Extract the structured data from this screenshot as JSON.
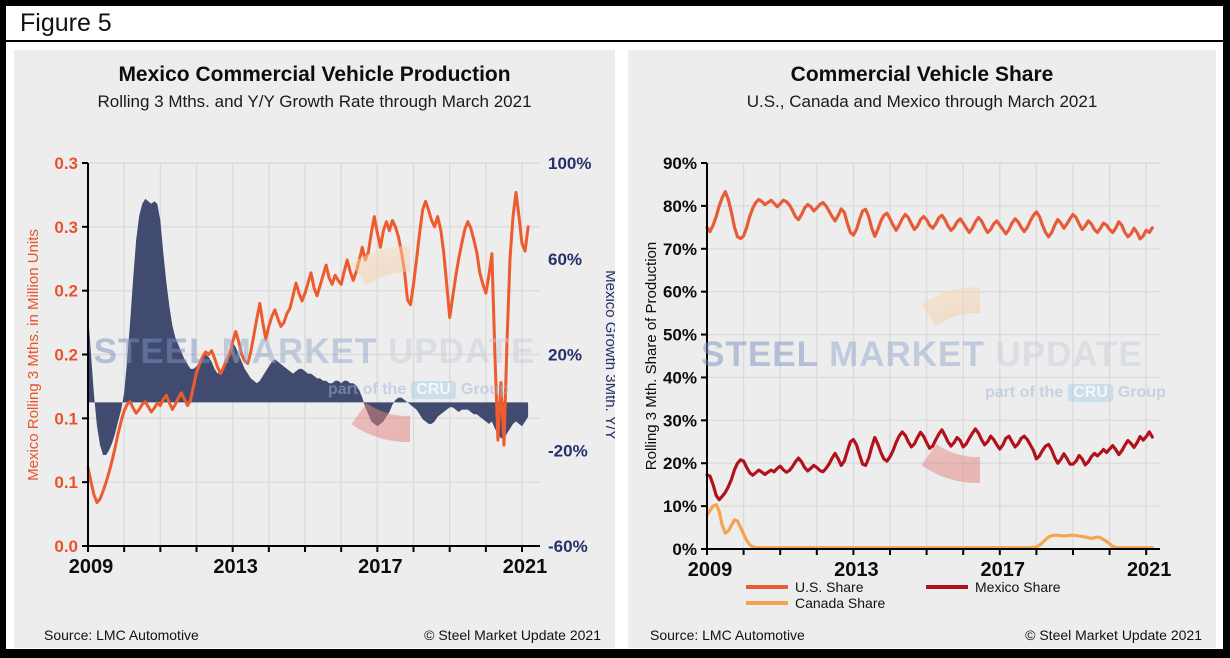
{
  "figure_label": "Figure 5",
  "watermark": {
    "steel": "STEEL",
    "market": "MARKET",
    "update": "UPDATE",
    "part_of": "part of the",
    "cru": "CRU",
    "group": "Group",
    "crescent_top_color": "#F7DAB2",
    "crescent_bottom_color": "#E4827E"
  },
  "theme": {
    "panel_bg": "#EDEDED",
    "grid": "#DBDBDB",
    "axis": "#000000",
    "orange_text": "#E8542A",
    "navy_text": "#26306B"
  },
  "left_panel": {
    "title": "Mexico Commercial Vehicle Production",
    "subtitle": "Rolling 3 Mths. and Y/Y Growth Rate through March 2021",
    "source": "Source: LMC Automotive",
    "copyright": "© Steel Market Update 2021"
  },
  "right_panel": {
    "title": "Commercial Vehicle Share",
    "subtitle": "U.S., Canada and Mexico through March 2021",
    "source": "Source: LMC Automotive",
    "copyright": "© Steel Market Update 2021"
  },
  "chart_data": [
    {
      "type": "line+area",
      "title": "Mexico Commercial Vehicle Production",
      "subtitle": "Rolling 3 Mths. and Y/Y Growth Rate through March 2021",
      "x_start": "2009-01",
      "x_end": "2021-03",
      "points_per_month": 1,
      "x_axis": {
        "tick_labels": [
          "2009",
          "2013",
          "2017",
          "2021"
        ],
        "minor_ticks_years": 13
      },
      "left_axis": {
        "label": "Mexico Rolling 3 Mths. in Million Units",
        "min": 0,
        "max": 0.3,
        "tick_labels": [
          "0.3",
          "0.3",
          "0.2",
          "0.2",
          "0.1",
          "0.1",
          "0.0"
        ],
        "color": "#E8542A"
      },
      "right_axis": {
        "label": "Mexico Growth 3Mth. Y/Y",
        "min": -60,
        "max": 100,
        "tick_labels": [
          "100%",
          "60%",
          "20%",
          "-20%",
          "-60%"
        ],
        "color": "#26306B"
      },
      "note": "monthly values estimated from plot",
      "series": [
        {
          "name": "Mexico Rolling 3 Mths. (Million Units)",
          "type": "line",
          "axis": "left",
          "color": "#EE5B2E",
          "values": [
            0.061,
            0.05,
            0.04,
            0.034,
            0.037,
            0.043,
            0.05,
            0.058,
            0.067,
            0.077,
            0.088,
            0.098,
            0.106,
            0.111,
            0.113,
            0.108,
            0.104,
            0.107,
            0.111,
            0.113,
            0.109,
            0.105,
            0.108,
            0.112,
            0.11,
            0.115,
            0.118,
            0.112,
            0.107,
            0.111,
            0.116,
            0.12,
            0.115,
            0.11,
            0.114,
            0.125,
            0.136,
            0.142,
            0.148,
            0.152,
            0.15,
            0.153,
            0.147,
            0.14,
            0.135,
            0.14,
            0.146,
            0.15,
            0.16,
            0.168,
            0.16,
            0.15,
            0.145,
            0.143,
            0.152,
            0.165,
            0.178,
            0.19,
            0.175,
            0.162,
            0.172,
            0.18,
            0.185,
            0.178,
            0.172,
            0.175,
            0.182,
            0.186,
            0.196,
            0.206,
            0.198,
            0.192,
            0.198,
            0.206,
            0.214,
            0.202,
            0.196,
            0.204,
            0.212,
            0.22,
            0.21,
            0.205,
            0.212,
            0.208,
            0.205,
            0.215,
            0.224,
            0.215,
            0.208,
            0.215,
            0.224,
            0.234,
            0.224,
            0.23,
            0.245,
            0.258,
            0.245,
            0.234,
            0.247,
            0.254,
            0.247,
            0.255,
            0.25,
            0.242,
            0.23,
            0.215,
            0.193,
            0.189,
            0.205,
            0.224,
            0.245,
            0.263,
            0.27,
            0.263,
            0.255,
            0.25,
            0.258,
            0.248,
            0.23,
            0.205,
            0.179,
            0.195,
            0.211,
            0.225,
            0.237,
            0.248,
            0.254,
            0.249,
            0.24,
            0.23,
            0.214,
            0.205,
            0.198,
            0.212,
            0.229,
            0.15,
            0.083,
            0.128,
            0.079,
            0.16,
            0.225,
            0.258,
            0.277,
            0.258,
            0.237,
            0.231,
            0.25
          ]
        },
        {
          "name": "Mexico Growth 3 Mth. Y/Y (%)",
          "type": "area",
          "axis": "right",
          "color": "#414A6F",
          "values": [
            37,
            20,
            3,
            -10,
            -18,
            -22,
            -22,
            -20,
            -17,
            -13,
            -8,
            -3,
            4,
            18,
            34,
            52,
            68,
            78,
            83,
            85,
            84,
            83,
            84,
            83,
            76,
            62,
            50,
            40,
            32,
            27,
            24,
            21,
            18,
            16,
            14,
            14,
            15,
            17,
            19,
            20,
            19,
            17,
            14,
            12,
            13,
            15,
            18,
            21,
            25,
            23,
            20,
            17,
            14,
            12,
            10,
            9,
            8,
            9,
            11,
            13,
            15,
            17,
            18,
            17,
            16,
            15,
            14,
            13,
            12,
            13,
            14,
            14,
            13,
            12,
            12,
            11,
            10,
            10,
            9,
            9,
            8,
            8,
            9,
            9,
            8,
            9,
            9,
            8,
            8,
            7,
            5,
            2,
            -2,
            -5,
            -8,
            -9,
            -10,
            -9,
            -8,
            -6,
            -4,
            -1,
            1,
            2,
            2,
            1,
            0,
            -1,
            -2,
            -3,
            -5,
            -7,
            -8,
            -9,
            -9,
            -8,
            -6,
            -5,
            -4,
            -3,
            -2,
            -2,
            -3,
            -4,
            -3,
            -3,
            -3,
            -4,
            -5,
            -5,
            -6,
            -7,
            -8,
            -9,
            -8,
            -11,
            -13,
            -15,
            -15,
            -13,
            -11,
            -9,
            -8,
            -9,
            -10,
            -8,
            -6
          ]
        }
      ]
    },
    {
      "type": "line",
      "title": "Commercial Vehicle Share",
      "subtitle": "U.S., Canada and Mexico through March 2021",
      "x_start": "2009-01",
      "x_end": "2021-03",
      "points_per_month": 1,
      "x_axis": {
        "tick_labels": [
          "2009",
          "2013",
          "2017",
          "2021"
        ],
        "minor_ticks_years": 13
      },
      "y_axis": {
        "label": "Rolling 3 Mth. Share of Production",
        "min": 0,
        "max": 90,
        "tick_labels": [
          "90%",
          "80%",
          "70%",
          "60%",
          "50%",
          "40%",
          "30%",
          "20%",
          "10%",
          "0%"
        ],
        "color": "#0d0d0d"
      },
      "legend_position": "bottom",
      "note": "monthly values estimated from plot",
      "series": [
        {
          "name": "U.S. Share",
          "color": "#E65C38",
          "values": [
            75.0,
            74.0,
            75.5,
            77.5,
            80.0,
            82.0,
            83.3,
            81.5,
            78.5,
            75.0,
            72.8,
            72.4,
            73.0,
            75.0,
            77.5,
            79.5,
            80.8,
            81.5,
            81.0,
            80.3,
            80.8,
            81.3,
            80.6,
            79.8,
            80.5,
            81.3,
            81.0,
            80.2,
            79.0,
            77.5,
            76.8,
            78.0,
            79.5,
            80.3,
            79.8,
            78.8,
            79.5,
            80.3,
            80.8,
            80.0,
            78.8,
            77.5,
            76.5,
            77.8,
            79.3,
            78.5,
            76.0,
            73.8,
            73.2,
            74.5,
            76.8,
            78.8,
            79.2,
            77.5,
            74.8,
            72.9,
            74.5,
            76.5,
            77.8,
            78.3,
            77.0,
            75.5,
            74.3,
            75.5,
            77.0,
            78.0,
            77.3,
            75.8,
            74.5,
            75.3,
            76.8,
            77.5,
            76.8,
            75.5,
            74.8,
            75.8,
            77.2,
            77.8,
            76.8,
            75.3,
            74.3,
            75.0,
            76.3,
            77.0,
            76.0,
            74.8,
            73.8,
            74.8,
            76.3,
            77.3,
            76.5,
            75.0,
            73.8,
            74.5,
            75.8,
            76.5,
            75.5,
            74.5,
            73.5,
            74.5,
            76.0,
            77.0,
            76.3,
            75.0,
            74.0,
            75.0,
            76.5,
            77.8,
            78.6,
            77.5,
            75.5,
            73.8,
            72.8,
            73.8,
            75.5,
            76.8,
            76.0,
            74.8,
            75.8,
            77.0,
            78.0,
            77.3,
            75.8,
            74.5,
            75.3,
            76.5,
            75.8,
            74.5,
            73.8,
            74.8,
            76.0,
            75.5,
            74.5,
            73.8,
            74.8,
            76.3,
            75.5,
            73.8,
            72.8,
            73.5,
            74.8,
            73.8,
            72.3,
            73.0,
            74.3,
            73.8,
            74.9
          ]
        },
        {
          "name": "Canada Share",
          "color": "#F4A44F",
          "values": [
            7.8,
            9.0,
            10.0,
            10.3,
            8.8,
            5.5,
            3.7,
            4.2,
            5.5,
            6.8,
            6.5,
            5.0,
            3.5,
            2.0,
            1.0,
            0.5,
            0.4,
            0.3,
            0.3,
            0.3,
            0.3,
            0.3,
            0.3,
            0.3,
            0.3,
            0.3,
            0.3,
            0.3,
            0.3,
            0.3,
            0.3,
            0.3,
            0.3,
            0.3,
            0.3,
            0.3,
            0.3,
            0.3,
            0.3,
            0.3,
            0.3,
            0.3,
            0.3,
            0.3,
            0.3,
            0.3,
            0.3,
            0.3,
            0.3,
            0.3,
            0.3,
            0.3,
            0.3,
            0.3,
            0.3,
            0.3,
            0.3,
            0.3,
            0.3,
            0.3,
            0.3,
            0.3,
            0.3,
            0.3,
            0.3,
            0.3,
            0.3,
            0.3,
            0.3,
            0.3,
            0.3,
            0.3,
            0.3,
            0.3,
            0.3,
            0.3,
            0.3,
            0.3,
            0.3,
            0.3,
            0.3,
            0.3,
            0.3,
            0.3,
            0.3,
            0.3,
            0.3,
            0.3,
            0.3,
            0.3,
            0.3,
            0.3,
            0.3,
            0.3,
            0.3,
            0.3,
            0.3,
            0.3,
            0.3,
            0.3,
            0.3,
            0.3,
            0.3,
            0.3,
            0.3,
            0.3,
            0.3,
            0.4,
            0.5,
            0.9,
            1.5,
            2.2,
            2.8,
            3.1,
            3.2,
            3.2,
            3.1,
            3.0,
            3.1,
            3.2,
            3.2,
            3.1,
            3.0,
            2.9,
            2.8,
            2.6,
            2.5,
            2.6,
            2.8,
            2.6,
            2.2,
            1.8,
            1.2,
            0.6,
            0.4,
            0.3,
            0.3,
            0.3,
            0.3,
            0.3,
            0.3,
            0.3,
            0.3,
            0.3,
            0.3,
            0.3,
            0.3
          ]
        },
        {
          "name": "Mexico Share",
          "color": "#B2121B",
          "values": [
            17.3,
            17.0,
            15.0,
            12.5,
            11.5,
            12.3,
            13.2,
            14.5,
            16.2,
            18.5,
            20.0,
            20.8,
            20.5,
            19.0,
            17.8,
            17.2,
            17.8,
            18.4,
            17.9,
            17.4,
            17.9,
            18.4,
            18.0,
            18.8,
            19.3,
            18.5,
            17.9,
            18.3,
            19.2,
            20.3,
            21.2,
            20.3,
            19.0,
            18.2,
            18.8,
            19.5,
            19.0,
            18.3,
            18.0,
            18.8,
            19.8,
            21.2,
            22.3,
            21.0,
            19.5,
            20.5,
            22.8,
            25.0,
            25.5,
            24.3,
            22.0,
            19.8,
            19.5,
            21.2,
            23.8,
            26.0,
            24.5,
            22.5,
            21.0,
            20.5,
            21.5,
            23.0,
            24.8,
            26.3,
            27.3,
            26.5,
            25.0,
            23.8,
            24.5,
            26.0,
            27.2,
            26.3,
            24.8,
            23.5,
            24.0,
            25.5,
            26.8,
            27.8,
            26.5,
            25.0,
            24.0,
            24.8,
            26.0,
            25.3,
            23.8,
            24.5,
            25.8,
            27.0,
            28.0,
            27.0,
            25.5,
            24.3,
            25.0,
            26.3,
            25.5,
            24.3,
            23.3,
            24.3,
            25.8,
            26.3,
            25.0,
            23.8,
            24.5,
            25.8,
            26.3,
            25.5,
            24.3,
            23.0,
            21.0,
            21.7,
            23.0,
            24.0,
            24.4,
            23.1,
            21.3,
            20.0,
            20.9,
            22.2,
            21.1,
            19.8,
            19.8,
            20.5,
            21.8,
            21.0,
            19.6,
            20.3,
            21.5,
            22.3,
            21.7,
            22.4,
            23.2,
            22.5,
            23.3,
            24.1,
            23.2,
            22.0,
            22.9,
            24.2,
            25.3,
            24.6,
            23.7,
            24.8,
            26.2,
            25.4,
            26.2,
            27.3,
            26.1
          ]
        }
      ]
    }
  ]
}
